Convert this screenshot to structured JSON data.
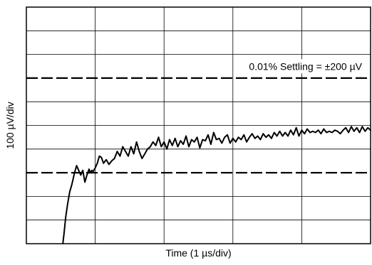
{
  "chart_data": {
    "type": "line",
    "title": "",
    "xlabel": "Time (1 µs/div)",
    "ylabel": "100 µV/div",
    "x_divisions": 5,
    "y_divisions": 10,
    "xlim": [
      0,
      5
    ],
    "ylim": [
      -5,
      5
    ],
    "x_unit": "µs",
    "y_unit": "µV (×100)",
    "grid": true,
    "settling_band": {
      "upper": 2,
      "lower": -2,
      "style": "dashed",
      "annotation": "0.01% Settling = ±200 µV"
    },
    "series": [
      {
        "color": "#000000",
        "x": [
          0.53,
          0.55,
          0.57,
          0.6,
          0.63,
          0.66,
          0.7,
          0.73,
          0.76,
          0.79,
          0.82,
          0.85,
          0.88,
          0.91,
          0.93,
          0.95,
          0.97,
          1.0,
          1.03,
          1.06,
          1.09,
          1.12,
          1.16,
          1.2,
          1.24,
          1.28,
          1.32,
          1.36,
          1.4,
          1.44,
          1.48,
          1.52,
          1.56,
          1.6,
          1.64,
          1.68,
          1.72,
          1.76,
          1.8,
          1.84,
          1.88,
          1.92,
          1.96,
          2.0,
          2.04,
          2.08,
          2.12,
          2.16,
          2.2,
          2.24,
          2.28,
          2.32,
          2.36,
          2.4,
          2.44,
          2.48,
          2.52,
          2.56,
          2.6,
          2.64,
          2.68,
          2.72,
          2.76,
          2.8,
          2.84,
          2.88,
          2.92,
          2.96,
          3.0,
          3.04,
          3.08,
          3.12,
          3.16,
          3.2,
          3.24,
          3.28,
          3.32,
          3.36,
          3.4,
          3.44,
          3.48,
          3.52,
          3.56,
          3.6,
          3.64,
          3.68,
          3.72,
          3.76,
          3.8,
          3.84,
          3.88,
          3.92,
          3.96,
          4.0,
          4.04,
          4.08,
          4.12,
          4.16,
          4.2,
          4.24,
          4.28,
          4.32,
          4.36,
          4.4,
          4.44,
          4.48,
          4.52,
          4.56,
          4.6,
          4.64,
          4.68,
          4.72,
          4.76,
          4.8,
          4.84,
          4.88,
          4.92,
          4.96,
          5.0
        ],
        "y": [
          -5.0,
          -4.5,
          -3.9,
          -3.3,
          -2.8,
          -2.5,
          -2.0,
          -1.7,
          -1.9,
          -2.1,
          -1.9,
          -2.4,
          -2.1,
          -1.85,
          -2.0,
          -1.9,
          -1.95,
          -1.8,
          -1.6,
          -1.3,
          -1.35,
          -1.6,
          -1.45,
          -1.65,
          -1.5,
          -1.4,
          -1.1,
          -1.3,
          -0.9,
          -1.1,
          -1.3,
          -0.9,
          -1.2,
          -0.7,
          -1.1,
          -1.4,
          -1.2,
          -1.0,
          -0.9,
          -0.7,
          -0.85,
          -0.5,
          -0.9,
          -0.7,
          -1.0,
          -0.6,
          -0.85,
          -0.55,
          -0.9,
          -0.65,
          -0.8,
          -0.45,
          -0.9,
          -0.6,
          -0.7,
          -0.5,
          -0.95,
          -0.6,
          -0.65,
          -0.4,
          -0.8,
          -0.3,
          -0.6,
          -0.55,
          -0.75,
          -0.5,
          -0.4,
          -0.75,
          -0.55,
          -0.7,
          -0.5,
          -0.6,
          -0.4,
          -0.7,
          -0.5,
          -0.35,
          -0.55,
          -0.45,
          -0.6,
          -0.35,
          -0.5,
          -0.4,
          -0.55,
          -0.3,
          -0.45,
          -0.25,
          -0.45,
          -0.3,
          -0.45,
          -0.2,
          -0.4,
          -0.1,
          -0.45,
          -0.2,
          -0.35,
          -0.15,
          -0.3,
          -0.25,
          -0.3,
          -0.2,
          -0.35,
          -0.15,
          -0.3,
          -0.25,
          -0.3,
          -0.2,
          -0.25,
          -0.35,
          -0.2,
          -0.1,
          -0.3,
          -0.05,
          -0.25,
          -0.1,
          -0.3,
          -0.05,
          -0.25,
          -0.1,
          -0.2
        ]
      }
    ]
  }
}
